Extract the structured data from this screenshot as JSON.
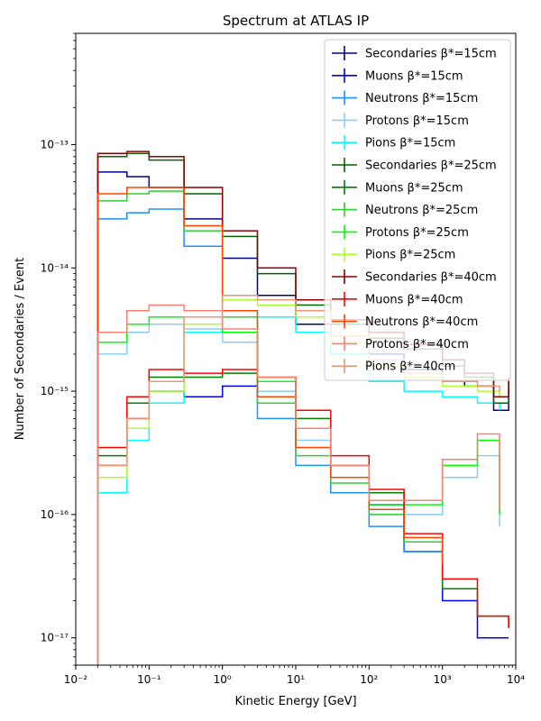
{
  "chart_data": {
    "type": "line",
    "title": "Spectrum at ATLAS IP",
    "xlabel": "Kinetic Energy [GeV]",
    "ylabel": "Number of Secondaries / Event",
    "xscale": "log",
    "yscale": "log",
    "xlim": [
      0.01,
      10000
    ],
    "ylim": [
      6e-18,
      8e-13
    ],
    "x_ticks": [
      {
        "value": 0.01,
        "label": "10⁻²"
      },
      {
        "value": 0.1,
        "label": "10⁻¹"
      },
      {
        "value": 1,
        "label": "10⁰"
      },
      {
        "value": 10,
        "label": "10¹"
      },
      {
        "value": 100,
        "label": "10²"
      },
      {
        "value": 1000,
        "label": "10³"
      },
      {
        "value": 10000,
        "label": "10⁴"
      }
    ],
    "y_ticks": [
      {
        "value": 1e-17,
        "label": "10⁻¹⁷"
      },
      {
        "value": 1e-16,
        "label": "10⁻¹⁶"
      },
      {
        "value": 1e-15,
        "label": "10⁻¹⁵"
      },
      {
        "value": 1e-14,
        "label": "10⁻¹⁴"
      },
      {
        "value": 1e-13,
        "label": "10⁻¹³"
      }
    ],
    "legend_position": "upper-right",
    "grid": false,
    "series": [
      {
        "name": "Secondaries β*=15cm",
        "color": "#00008b",
        "x": [
          0.02,
          0.05,
          0.1,
          0.3,
          1,
          3,
          10,
          30,
          100,
          300,
          1000,
          2000,
          5000,
          8000
        ],
        "y": [
          6e-14,
          5.5e-14,
          4.5e-14,
          2.5e-14,
          1.2e-14,
          6e-15,
          3.5e-15,
          2.5e-15,
          2e-15,
          1.5e-15,
          1.2e-15,
          1.1e-15,
          7e-16,
          1e-15
        ]
      },
      {
        "name": "Muons β*=15cm",
        "color": "#0000ff",
        "x": [
          0.02,
          0.05,
          0.1,
          0.3,
          1,
          3,
          10,
          30,
          100,
          300,
          1000,
          3000,
          8000
        ],
        "y": [
          2.5e-16,
          6e-16,
          1e-15,
          9e-16,
          1.1e-15,
          9e-16,
          5e-16,
          2e-16,
          1.2e-16,
          5e-17,
          2e-17,
          1e-17,
          1e-17
        ]
      },
      {
        "name": "Neutrons β*=15cm",
        "color": "#1e90ff",
        "x": [
          0.02,
          0.05,
          0.1,
          0.3,
          1,
          3,
          10,
          30,
          100,
          300,
          1000
        ],
        "y": [
          2.5e-14,
          2.8e-14,
          3e-14,
          1.5e-14,
          3e-15,
          6e-16,
          2.5e-16,
          1.5e-16,
          8e-17,
          5e-17,
          3e-17
        ]
      },
      {
        "name": "Protons β*=15cm",
        "color": "#87cefa",
        "x": [
          0.02,
          0.05,
          0.1,
          0.3,
          1,
          3,
          10,
          30,
          100,
          300,
          1000,
          3000,
          6000
        ],
        "y": [
          2e-15,
          3e-15,
          3.5e-15,
          3.2e-15,
          2.5e-15,
          1e-15,
          4e-16,
          2e-16,
          1e-16,
          1e-16,
          2e-16,
          3e-16,
          8e-17
        ]
      },
      {
        "name": "Pions β*=15cm",
        "color": "#00ffff",
        "x": [
          0.02,
          0.05,
          0.1,
          0.3,
          1,
          3,
          10,
          30,
          100,
          300,
          1000,
          3000,
          6000
        ],
        "y": [
          1.5e-16,
          4e-16,
          8e-16,
          3e-15,
          4.5e-15,
          4e-15,
          3e-15,
          2e-15,
          1.2e-15,
          1e-15,
          9e-16,
          8e-16,
          7e-16
        ]
      },
      {
        "name": "Secondaries β*=25cm",
        "color": "#006400",
        "x": [
          0.02,
          0.05,
          0.1,
          0.3,
          1,
          3,
          10,
          30,
          100,
          300,
          1000,
          2000,
          5000,
          8000
        ],
        "y": [
          8e-14,
          8.5e-14,
          7.5e-14,
          4e-14,
          1.8e-14,
          9e-15,
          5e-15,
          3.5e-15,
          2.7e-15,
          2.2e-15,
          1.6e-15,
          1.3e-15,
          8e-16,
          1.2e-15
        ]
      },
      {
        "name": "Muons β*=25cm",
        "color": "#008000",
        "x": [
          0.02,
          0.05,
          0.1,
          0.3,
          1,
          3,
          10,
          30,
          100,
          300,
          1000,
          3000,
          8000
        ],
        "y": [
          3e-16,
          8e-16,
          1.3e-15,
          1.3e-15,
          1.4e-15,
          1.2e-15,
          6e-16,
          2.5e-16,
          1.5e-16,
          6e-17,
          2.5e-17,
          1.5e-17,
          1.2e-17
        ]
      },
      {
        "name": "Neutrons β*=25cm",
        "color": "#32cd32",
        "x": [
          0.02,
          0.05,
          0.1,
          0.3,
          1,
          3,
          10,
          30,
          100,
          300,
          1000
        ],
        "y": [
          3.5e-14,
          4e-14,
          4.2e-14,
          2e-14,
          4e-15,
          8e-16,
          3e-16,
          1.8e-16,
          1e-16,
          6e-17,
          3.5e-17
        ]
      },
      {
        "name": "Protons β*=25cm",
        "color": "#00ff00",
        "x": [
          0.02,
          0.05,
          0.1,
          0.3,
          1,
          3,
          10,
          30,
          100,
          300,
          1000,
          3000,
          6000
        ],
        "y": [
          2.5e-15,
          3.5e-15,
          4e-15,
          4e-15,
          3e-15,
          1.2e-15,
          5e-16,
          2.5e-16,
          1.2e-16,
          1.2e-16,
          2.5e-16,
          4e-16,
          1e-16
        ]
      },
      {
        "name": "Pions β*=25cm",
        "color": "#adff2f",
        "x": [
          0.02,
          0.05,
          0.1,
          0.3,
          1,
          3,
          10,
          30,
          100,
          300,
          1000,
          3000,
          6000
        ],
        "y": [
          2e-16,
          5e-16,
          1e-15,
          3.5e-15,
          5.5e-15,
          5e-15,
          4e-15,
          2.5e-15,
          1.6e-15,
          1.3e-15,
          1.1e-15,
          1e-15,
          9e-16
        ]
      },
      {
        "name": "Secondaries β*=40cm",
        "color": "#8b0000",
        "x": [
          0.02,
          0.05,
          0.1,
          0.3,
          1,
          3,
          10,
          30,
          100,
          300,
          1000,
          2000,
          5000,
          8000
        ],
        "y": [
          8.5e-14,
          8.8e-14,
          8e-14,
          4.5e-14,
          2e-14,
          1e-14,
          5.5e-15,
          3.8e-15,
          3e-15,
          2.4e-15,
          1.8e-15,
          1.4e-15,
          9e-16,
          1.3e-15
        ]
      },
      {
        "name": "Muons β*=40cm",
        "color": "#ff0000",
        "x": [
          0.02,
          0.05,
          0.1,
          0.3,
          1,
          3,
          10,
          30,
          100,
          300,
          1000,
          3000,
          8000
        ],
        "y": [
          3.5e-16,
          9e-16,
          1.5e-15,
          1.4e-15,
          1.5e-15,
          1.3e-15,
          7e-16,
          3e-16,
          1.6e-16,
          7e-17,
          3e-17,
          1.5e-17,
          1.2e-17
        ]
      },
      {
        "name": "Neutrons β*=40cm",
        "color": "#ff4500",
        "x": [
          0.02,
          0.05,
          0.1,
          0.3,
          1,
          3,
          10,
          30,
          100,
          300,
          1000
        ],
        "y": [
          4e-14,
          4.5e-14,
          4.5e-14,
          2.2e-14,
          4.5e-15,
          9e-16,
          3.5e-16,
          2e-16,
          1.1e-16,
          6.5e-17,
          4e-17
        ]
      },
      {
        "name": "Protons β*=40cm",
        "color": "#fa8072",
        "x": [
          0.02,
          0.05,
          0.1,
          0.3,
          1,
          3,
          10,
          30,
          100,
          300,
          1000,
          3000,
          6000
        ],
        "y": [
          3e-15,
          4.5e-15,
          5e-15,
          4.5e-15,
          3.2e-15,
          1.3e-15,
          5e-16,
          2.5e-16,
          1.3e-16,
          1.3e-16,
          2.8e-16,
          4.5e-16,
          1.1e-16
        ]
      },
      {
        "name": "Pions β*=40cm",
        "color": "#e9967a",
        "x": [
          0.02,
          0.05,
          0.1,
          0.3,
          1,
          3,
          10,
          30,
          100,
          300,
          1000,
          3000,
          6000
        ],
        "y": [
          2.5e-16,
          6e-16,
          1.2e-15,
          4e-15,
          6e-15,
          5.5e-15,
          4.5e-15,
          2.8e-15,
          1.8e-15,
          1.4e-15,
          1.2e-15,
          1.1e-15,
          1e-15
        ]
      }
    ]
  }
}
